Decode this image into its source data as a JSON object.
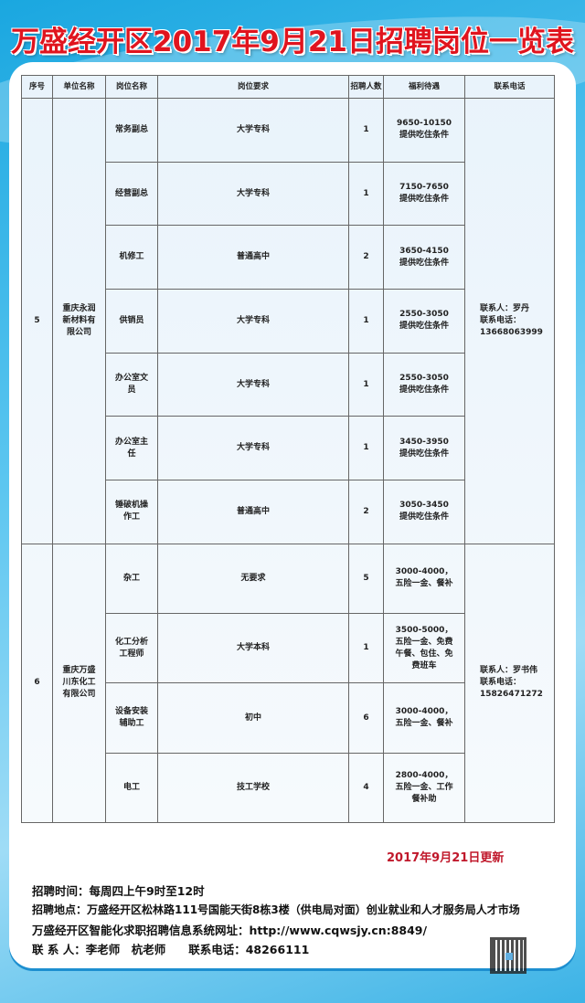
{
  "title": "万盛经开区2017年9月21日招聘岗位一览表",
  "headers": [
    "序号",
    "单位名称",
    "岗位名称",
    "岗位要求",
    "招聘人数",
    "福利待遇",
    "联系电话"
  ],
  "companies": [
    {
      "no": "5",
      "name": "重庆永润新材料有限公司",
      "contact": "联系人：罗丹",
      "phone_label": "联系电话：",
      "phone": "13668063999",
      "jobs": [
        {
          "title": "常务副总",
          "req": "大学专科",
          "count": "1",
          "benefit": "9650-10150 提供吃住条件"
        },
        {
          "title": "经营副总",
          "req": "大学专科",
          "count": "1",
          "benefit": "7150-7650 提供吃住条件"
        },
        {
          "title": "机修工",
          "req": "普通高中",
          "count": "2",
          "benefit": "3650-4150 提供吃住条件"
        },
        {
          "title": "供销员",
          "req": "大学专科",
          "count": "1",
          "benefit": "2550-3050 提供吃住条件"
        },
        {
          "title": "办公室文员",
          "req": "大学专科",
          "count": "1",
          "benefit": "2550-3050 提供吃住条件"
        },
        {
          "title": "办公室主任",
          "req": "大学专科",
          "count": "1",
          "benefit": "3450-3950 提供吃住条件"
        },
        {
          "title": "锤破机操作工",
          "req": "普通高中",
          "count": "2",
          "benefit": "3050-3450 提供吃住条件"
        }
      ]
    },
    {
      "no": "6",
      "name": "重庆万盛川东化工有限公司",
      "contact": "联系人：罗书伟",
      "phone_label": "联系电话：",
      "phone": "15826471272",
      "jobs": [
        {
          "title": "杂工",
          "req": "无要求",
          "count": "5",
          "benefit": "3000-4000，五险一金、餐补"
        },
        {
          "title": "化工分析工程师",
          "req": "大学本科",
          "count": "1",
          "benefit": "3500-5000，五险一金、免费午餐、包住、免费班车"
        },
        {
          "title": "设备安装辅助工",
          "req": "初中",
          "count": "6",
          "benefit": "3000-4000，五险一金、餐补"
        },
        {
          "title": "电工",
          "req": "技工学校",
          "count": "4",
          "benefit": "2800-4000，五险一金、工作餐补助"
        }
      ]
    }
  ],
  "update": "2017年9月21日更新",
  "info": {
    "time": "招聘时间：每周四上午9时至12时",
    "place": "招聘地点：万盛经开区松林路111号国能天街8栋3楼（供电局对面）创业就业和人才服务局人才市场",
    "site": "万盛经开区智能化求职招聘信息系统网址：http://www.cqwsjy.cn:8849/",
    "contact": "联 系 人：李老师　杭老师　　联系电话：48266111"
  },
  "colors": {
    "title": "#e0141e",
    "update": "#c0182b",
    "background": "#1aa7e0"
  }
}
